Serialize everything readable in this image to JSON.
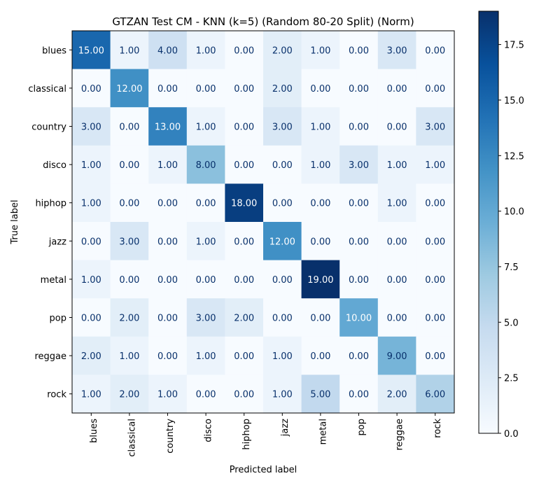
{
  "chart_data": {
    "type": "heatmap",
    "title": "GTZAN Test CM - KNN (k=5) (Random 80-20 Split) (Norm)",
    "xlabel": "Predicted label",
    "ylabel": "True label",
    "x_categories": [
      "blues",
      "classical",
      "country",
      "disco",
      "hiphop",
      "jazz",
      "metal",
      "pop",
      "reggae",
      "rock"
    ],
    "y_categories": [
      "blues",
      "classical",
      "country",
      "disco",
      "hiphop",
      "jazz",
      "metal",
      "pop",
      "reggae",
      "rock"
    ],
    "values": [
      [
        15,
        1,
        4,
        1,
        0,
        2,
        1,
        0,
        3,
        0
      ],
      [
        0,
        12,
        0,
        0,
        0,
        2,
        0,
        0,
        0,
        0
      ],
      [
        3,
        0,
        13,
        1,
        0,
        3,
        1,
        0,
        0,
        3
      ],
      [
        1,
        0,
        1,
        8,
        0,
        0,
        1,
        3,
        1,
        1
      ],
      [
        1,
        0,
        0,
        0,
        18,
        0,
        0,
        0,
        1,
        0
      ],
      [
        0,
        3,
        0,
        1,
        0,
        12,
        0,
        0,
        0,
        0
      ],
      [
        1,
        0,
        0,
        0,
        0,
        0,
        19,
        0,
        0,
        0
      ],
      [
        0,
        2,
        0,
        3,
        2,
        0,
        0,
        10,
        0,
        0
      ],
      [
        2,
        1,
        0,
        1,
        0,
        1,
        0,
        0,
        9,
        0
      ],
      [
        1,
        2,
        1,
        0,
        0,
        1,
        5,
        0,
        2,
        6
      ]
    ],
    "value_format_decimals": 2,
    "colorbar": {
      "range": [
        0,
        19
      ],
      "ticks": [
        "0.0",
        "2.5",
        "5.0",
        "7.5",
        "10.0",
        "12.5",
        "15.0",
        "17.5"
      ],
      "tick_values": [
        0,
        2.5,
        5,
        7.5,
        10,
        12.5,
        15,
        17.5
      ],
      "colormap": "Blues"
    },
    "grid": false
  }
}
